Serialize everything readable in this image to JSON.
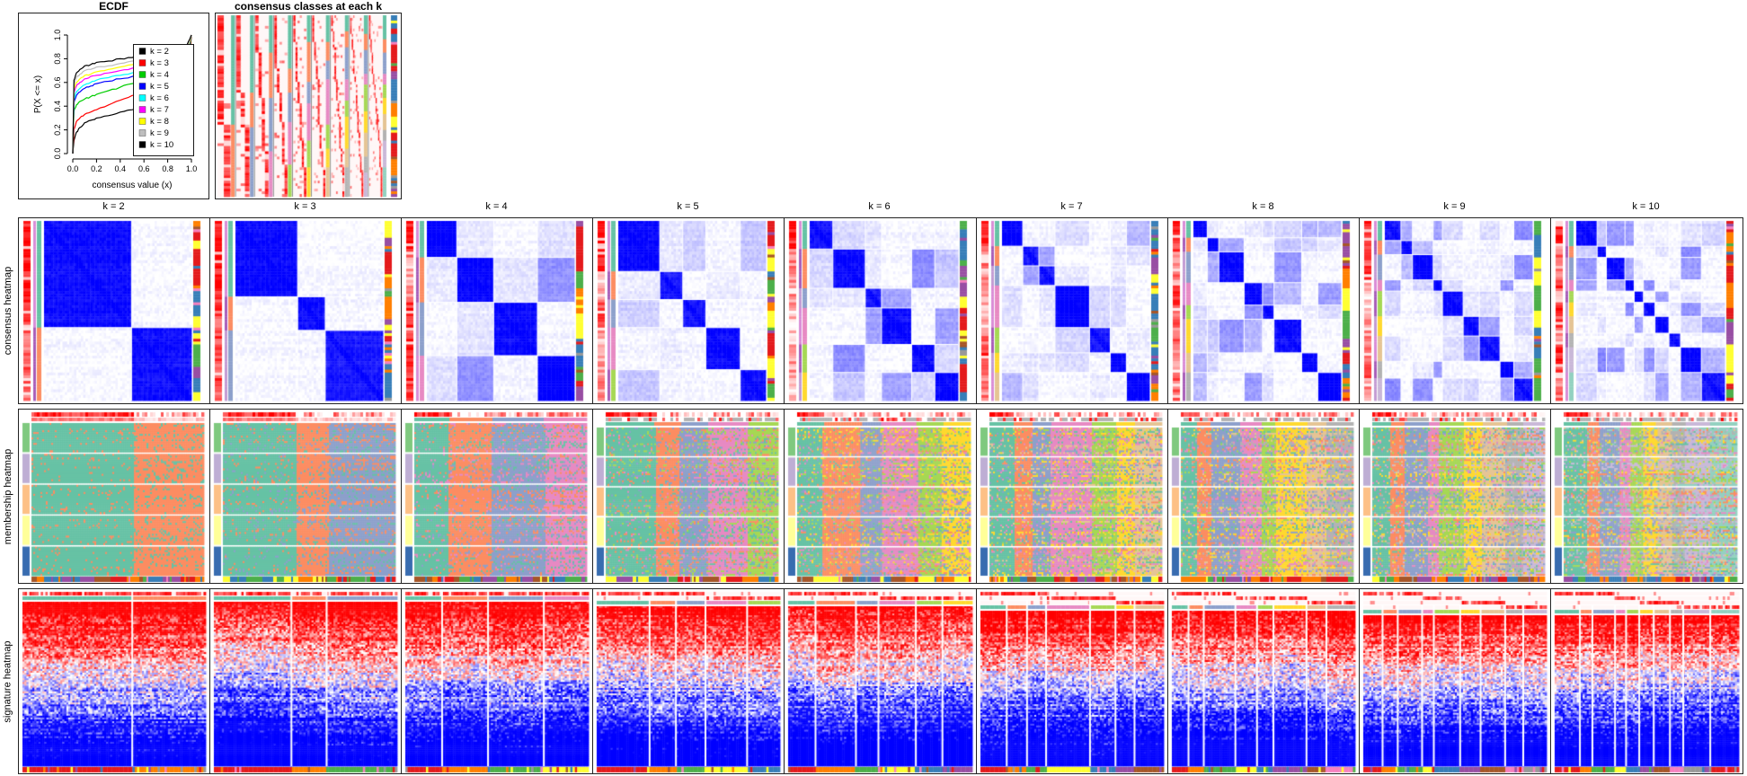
{
  "page": {
    "background": "#FFFFFF"
  },
  "top": {
    "ecdf": {
      "title": "ECDF",
      "xlabel": "consensus value (x)",
      "ylabel": "P(X <= x)",
      "xticks": [
        "0.0",
        "0.2",
        "0.4",
        "0.6",
        "0.8",
        "1.0"
      ],
      "yticks": [
        "0.0",
        "0.2",
        "0.4",
        "0.6",
        "0.8",
        "1.0"
      ]
    },
    "classes": {
      "title": "consensus classes at each k"
    }
  },
  "grid": {
    "column_headers": [
      "k = 2",
      "k = 3",
      "k = 4",
      "k = 5",
      "k = 6",
      "k = 7",
      "k = 8",
      "k = 9",
      "k = 10"
    ],
    "ks": [
      2,
      3,
      4,
      5,
      6,
      7,
      8,
      9,
      10
    ],
    "row_labels": [
      "consensus heatmap",
      "membership heatmap",
      "signature heatmap"
    ]
  },
  "palettes": {
    "set2_classes": [
      "#66C2A5",
      "#FC8D62",
      "#8DA0CB",
      "#E78AC3",
      "#A6D854",
      "#FFD92F",
      "#E5C494",
      "#B3B3B3",
      "#C9B8D8",
      "#93D1C0"
    ],
    "set1_anno": [
      "#E41A1C",
      "#377EB8",
      "#4DAF4A",
      "#984EA3",
      "#FF7F00",
      "#FFFF33",
      "#A65628",
      "#F781BF",
      "#999999"
    ],
    "accent_anno": [
      "#7FC97F",
      "#BEAED4",
      "#FDC086",
      "#FFFF99",
      "#386CB0"
    ],
    "orchid_track": [
      "#D98CD6",
      "#A85CB8",
      "#C39BD3"
    ],
    "consensus_high": "#0000FF",
    "signature_high": "#FF0000",
    "signature_low": "#0000FF",
    "probability_high": "#FF0000",
    "gray_track": "#B3B3B3"
  },
  "chart_data": [
    {
      "type": "line",
      "title": "ECDF",
      "xlabel": "consensus value (x)",
      "ylabel": "P(X <= x)",
      "xlim": [
        0,
        1
      ],
      "ylim": [
        0,
        1
      ],
      "grid": false,
      "legend_position": "right",
      "x": [
        0,
        0.01,
        0.03,
        0.06,
        0.1,
        0.15,
        0.2,
        0.3,
        0.4,
        0.5,
        0.6,
        0.7,
        0.8,
        0.9,
        0.96,
        1.0
      ],
      "series": [
        {
          "name": "k = 2",
          "color": "#000000",
          "values": [
            0,
            0.11,
            0.18,
            0.22,
            0.26,
            0.28,
            0.3,
            0.32,
            0.35,
            0.37,
            0.39,
            0.41,
            0.43,
            0.45,
            0.46,
            1.0
          ]
        },
        {
          "name": "k = 3",
          "color": "#FF0000",
          "values": [
            0,
            0.2,
            0.27,
            0.3,
            0.33,
            0.35,
            0.37,
            0.41,
            0.45,
            0.49,
            0.52,
            0.55,
            0.58,
            0.61,
            0.63,
            1.0
          ]
        },
        {
          "name": "k = 4",
          "color": "#00CD00",
          "values": [
            0,
            0.36,
            0.41,
            0.44,
            0.46,
            0.48,
            0.5,
            0.53,
            0.56,
            0.59,
            0.62,
            0.65,
            0.68,
            0.72,
            0.75,
            1.0
          ]
        },
        {
          "name": "k = 5",
          "color": "#0000FF",
          "values": [
            0,
            0.43,
            0.49,
            0.52,
            0.55,
            0.57,
            0.59,
            0.61,
            0.63,
            0.65,
            0.68,
            0.71,
            0.74,
            0.78,
            0.81,
            1.0
          ]
        },
        {
          "name": "k = 6",
          "color": "#00FFFF",
          "values": [
            0,
            0.46,
            0.52,
            0.55,
            0.58,
            0.6,
            0.62,
            0.64,
            0.66,
            0.68,
            0.71,
            0.73,
            0.76,
            0.8,
            0.83,
            1.0
          ]
        },
        {
          "name": "k = 7",
          "color": "#FF00FF",
          "values": [
            0,
            0.51,
            0.57,
            0.6,
            0.63,
            0.65,
            0.66,
            0.68,
            0.7,
            0.72,
            0.74,
            0.77,
            0.79,
            0.82,
            0.85,
            1.0
          ]
        },
        {
          "name": "k = 8",
          "color": "#FFFF00",
          "values": [
            0,
            0.54,
            0.6,
            0.63,
            0.66,
            0.67,
            0.69,
            0.71,
            0.73,
            0.75,
            0.77,
            0.79,
            0.81,
            0.84,
            0.86,
            1.0
          ]
        },
        {
          "name": "k = 9",
          "color": "#BEBEBE",
          "values": [
            0,
            0.58,
            0.64,
            0.67,
            0.7,
            0.71,
            0.73,
            0.74,
            0.76,
            0.78,
            0.8,
            0.82,
            0.84,
            0.86,
            0.88,
            1.0
          ]
        },
        {
          "name": "k = 10",
          "color": "#000000",
          "values": [
            0,
            0.62,
            0.68,
            0.71,
            0.74,
            0.75,
            0.77,
            0.78,
            0.8,
            0.81,
            0.83,
            0.85,
            0.87,
            0.89,
            0.91,
            1.0
          ]
        }
      ]
    },
    {
      "type": "heatmap",
      "title": "consensus clustering panel grid",
      "top_panels": [
        "ECDF",
        "consensus classes at each k"
      ],
      "rows": [
        "consensus heatmap",
        "membership heatmap",
        "signature heatmap"
      ],
      "columns": [
        "k = 2",
        "k = 3",
        "k = 4",
        "k = 5",
        "k = 6",
        "k = 7",
        "k = 8",
        "k = 9",
        "k = 10"
      ],
      "colorscales": {
        "consensus": "white (0) to blue (1) similarity, k diagonal blocks",
        "membership": "Set2 class colors per column group, 5 row groups with Accent side annotation",
        "signature": "red (high, top rows) to blue (low, bottom rows), column groups split by class",
        "probability": "white (0) to red (1)",
        "class_annotation": "Set1 colors"
      }
    }
  ]
}
